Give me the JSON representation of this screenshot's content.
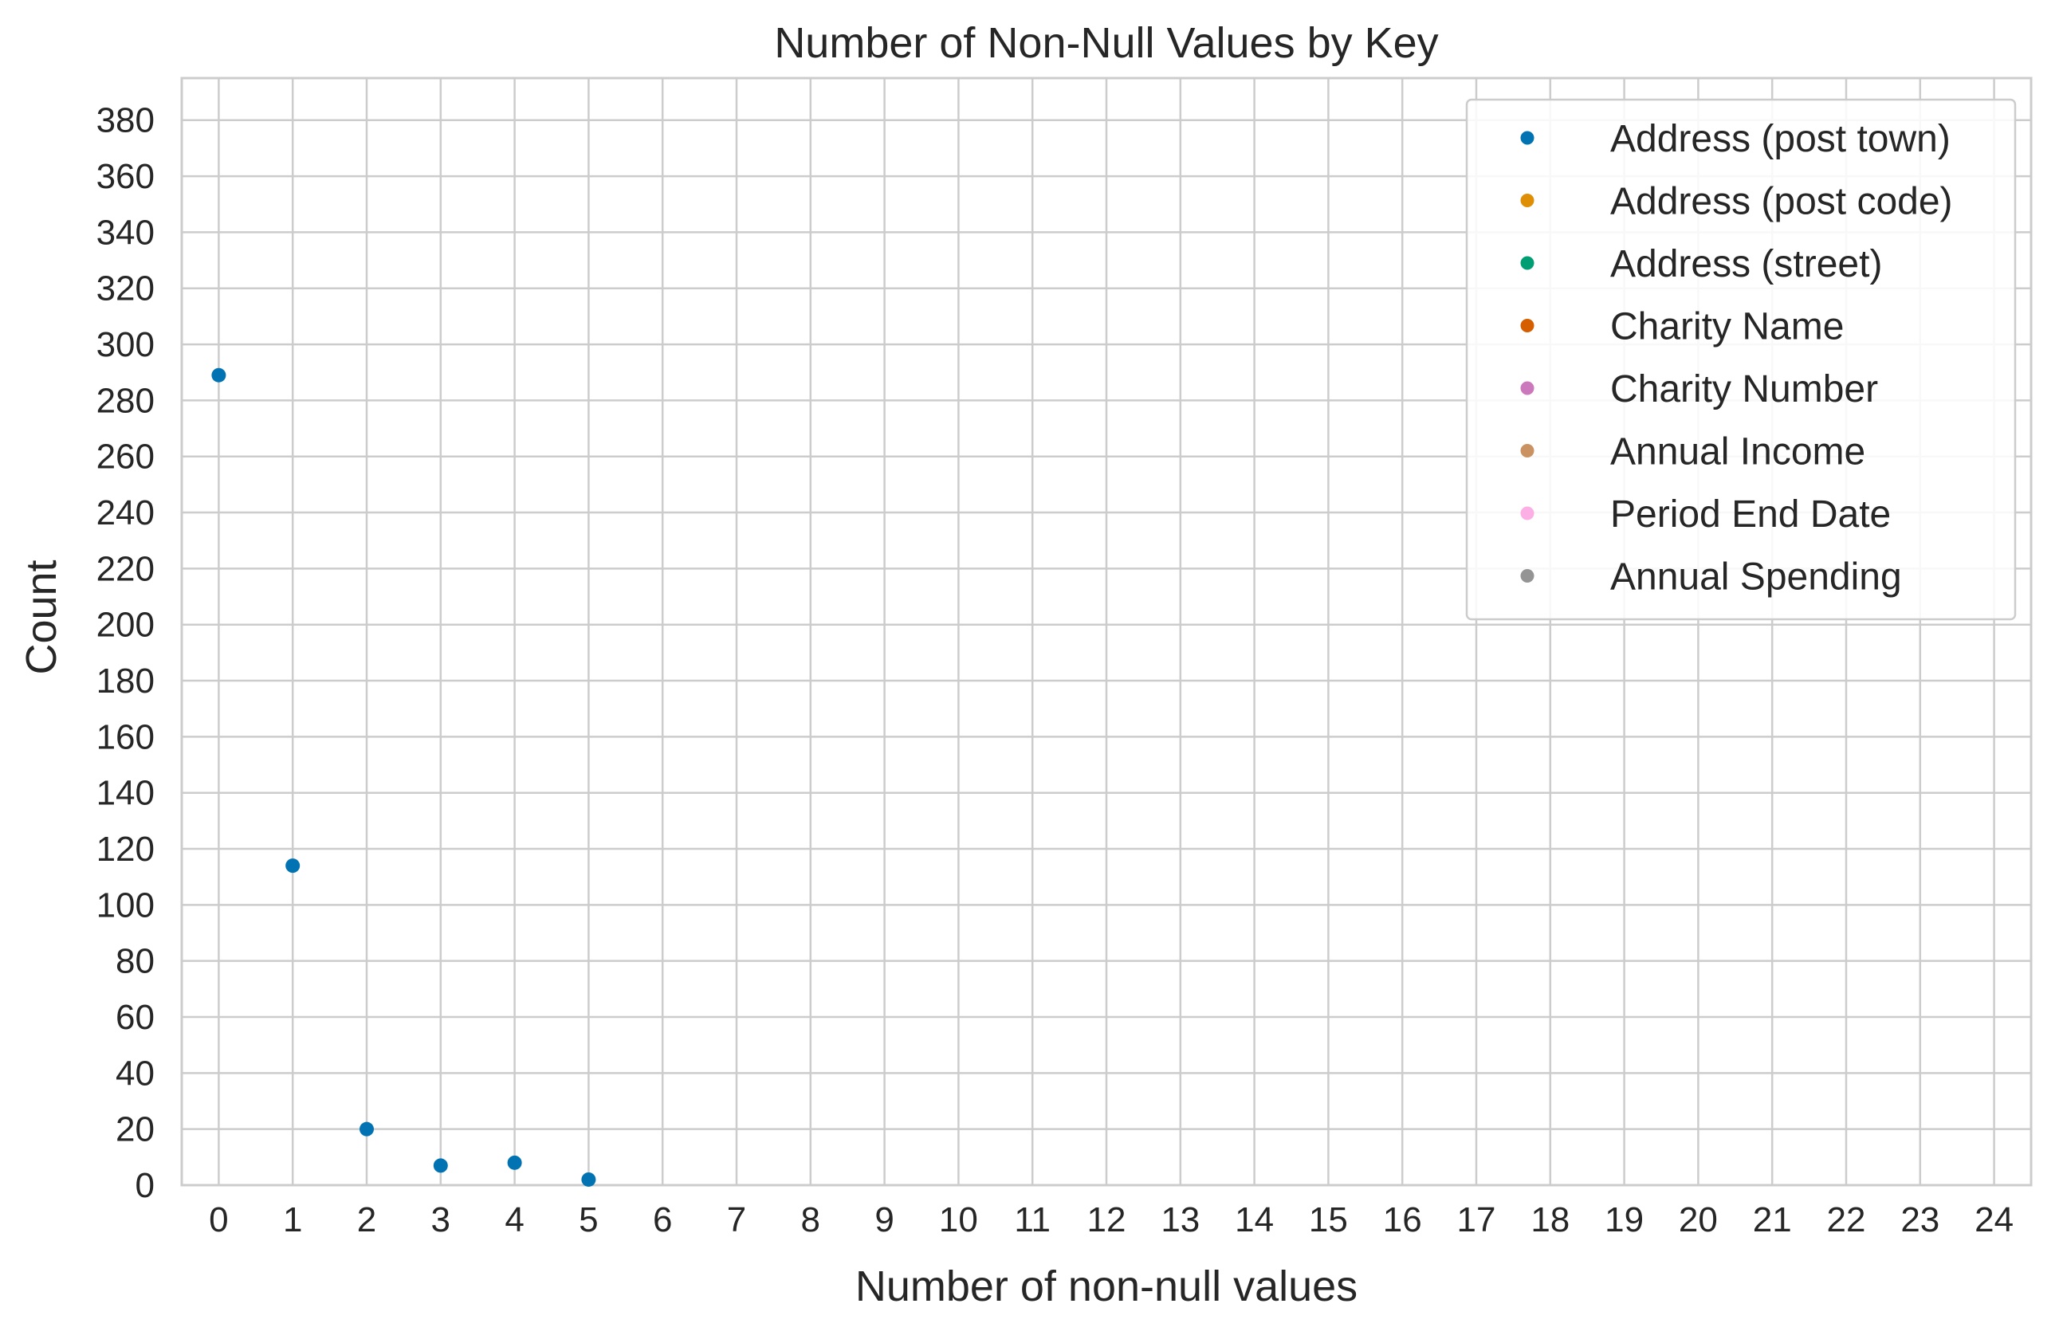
{
  "chart_data": {
    "type": "scatter",
    "title": "Number of Non-Null Values by Key",
    "xlabel": "Number of non-null values",
    "ylabel": "Count",
    "xlim": [
      -0.5,
      24.5
    ],
    "ylim": [
      0,
      395
    ],
    "x_ticks": [
      0,
      1,
      2,
      3,
      4,
      5,
      6,
      7,
      8,
      9,
      10,
      11,
      12,
      13,
      14,
      15,
      16,
      17,
      18,
      19,
      20,
      21,
      22,
      23,
      24
    ],
    "y_ticks": [
      0,
      20,
      40,
      60,
      80,
      100,
      120,
      140,
      160,
      180,
      200,
      220,
      240,
      260,
      280,
      300,
      320,
      340,
      360,
      380
    ],
    "grid": true,
    "legend_position": "top-right",
    "series": [
      {
        "name": "Address (post town)",
        "color": "#0173b2",
        "points": [
          [
            0,
            289
          ],
          [
            1,
            114
          ],
          [
            2,
            20
          ],
          [
            3,
            7
          ],
          [
            4,
            8
          ],
          [
            5,
            2
          ]
        ]
      },
      {
        "name": "Address (post code)",
        "color": "#de8f05",
        "points": []
      },
      {
        "name": "Address (street)",
        "color": "#029e73",
        "points": []
      },
      {
        "name": "Charity Name",
        "color": "#d55e00",
        "points": []
      },
      {
        "name": "Charity Number",
        "color": "#cc78bc",
        "points": []
      },
      {
        "name": "Annual Income",
        "color": "#ca9161",
        "points": []
      },
      {
        "name": "Period End Date",
        "color": "#fbafe4",
        "points": []
      },
      {
        "name": "Annual Spending",
        "color": "#949494",
        "points": []
      }
    ]
  }
}
